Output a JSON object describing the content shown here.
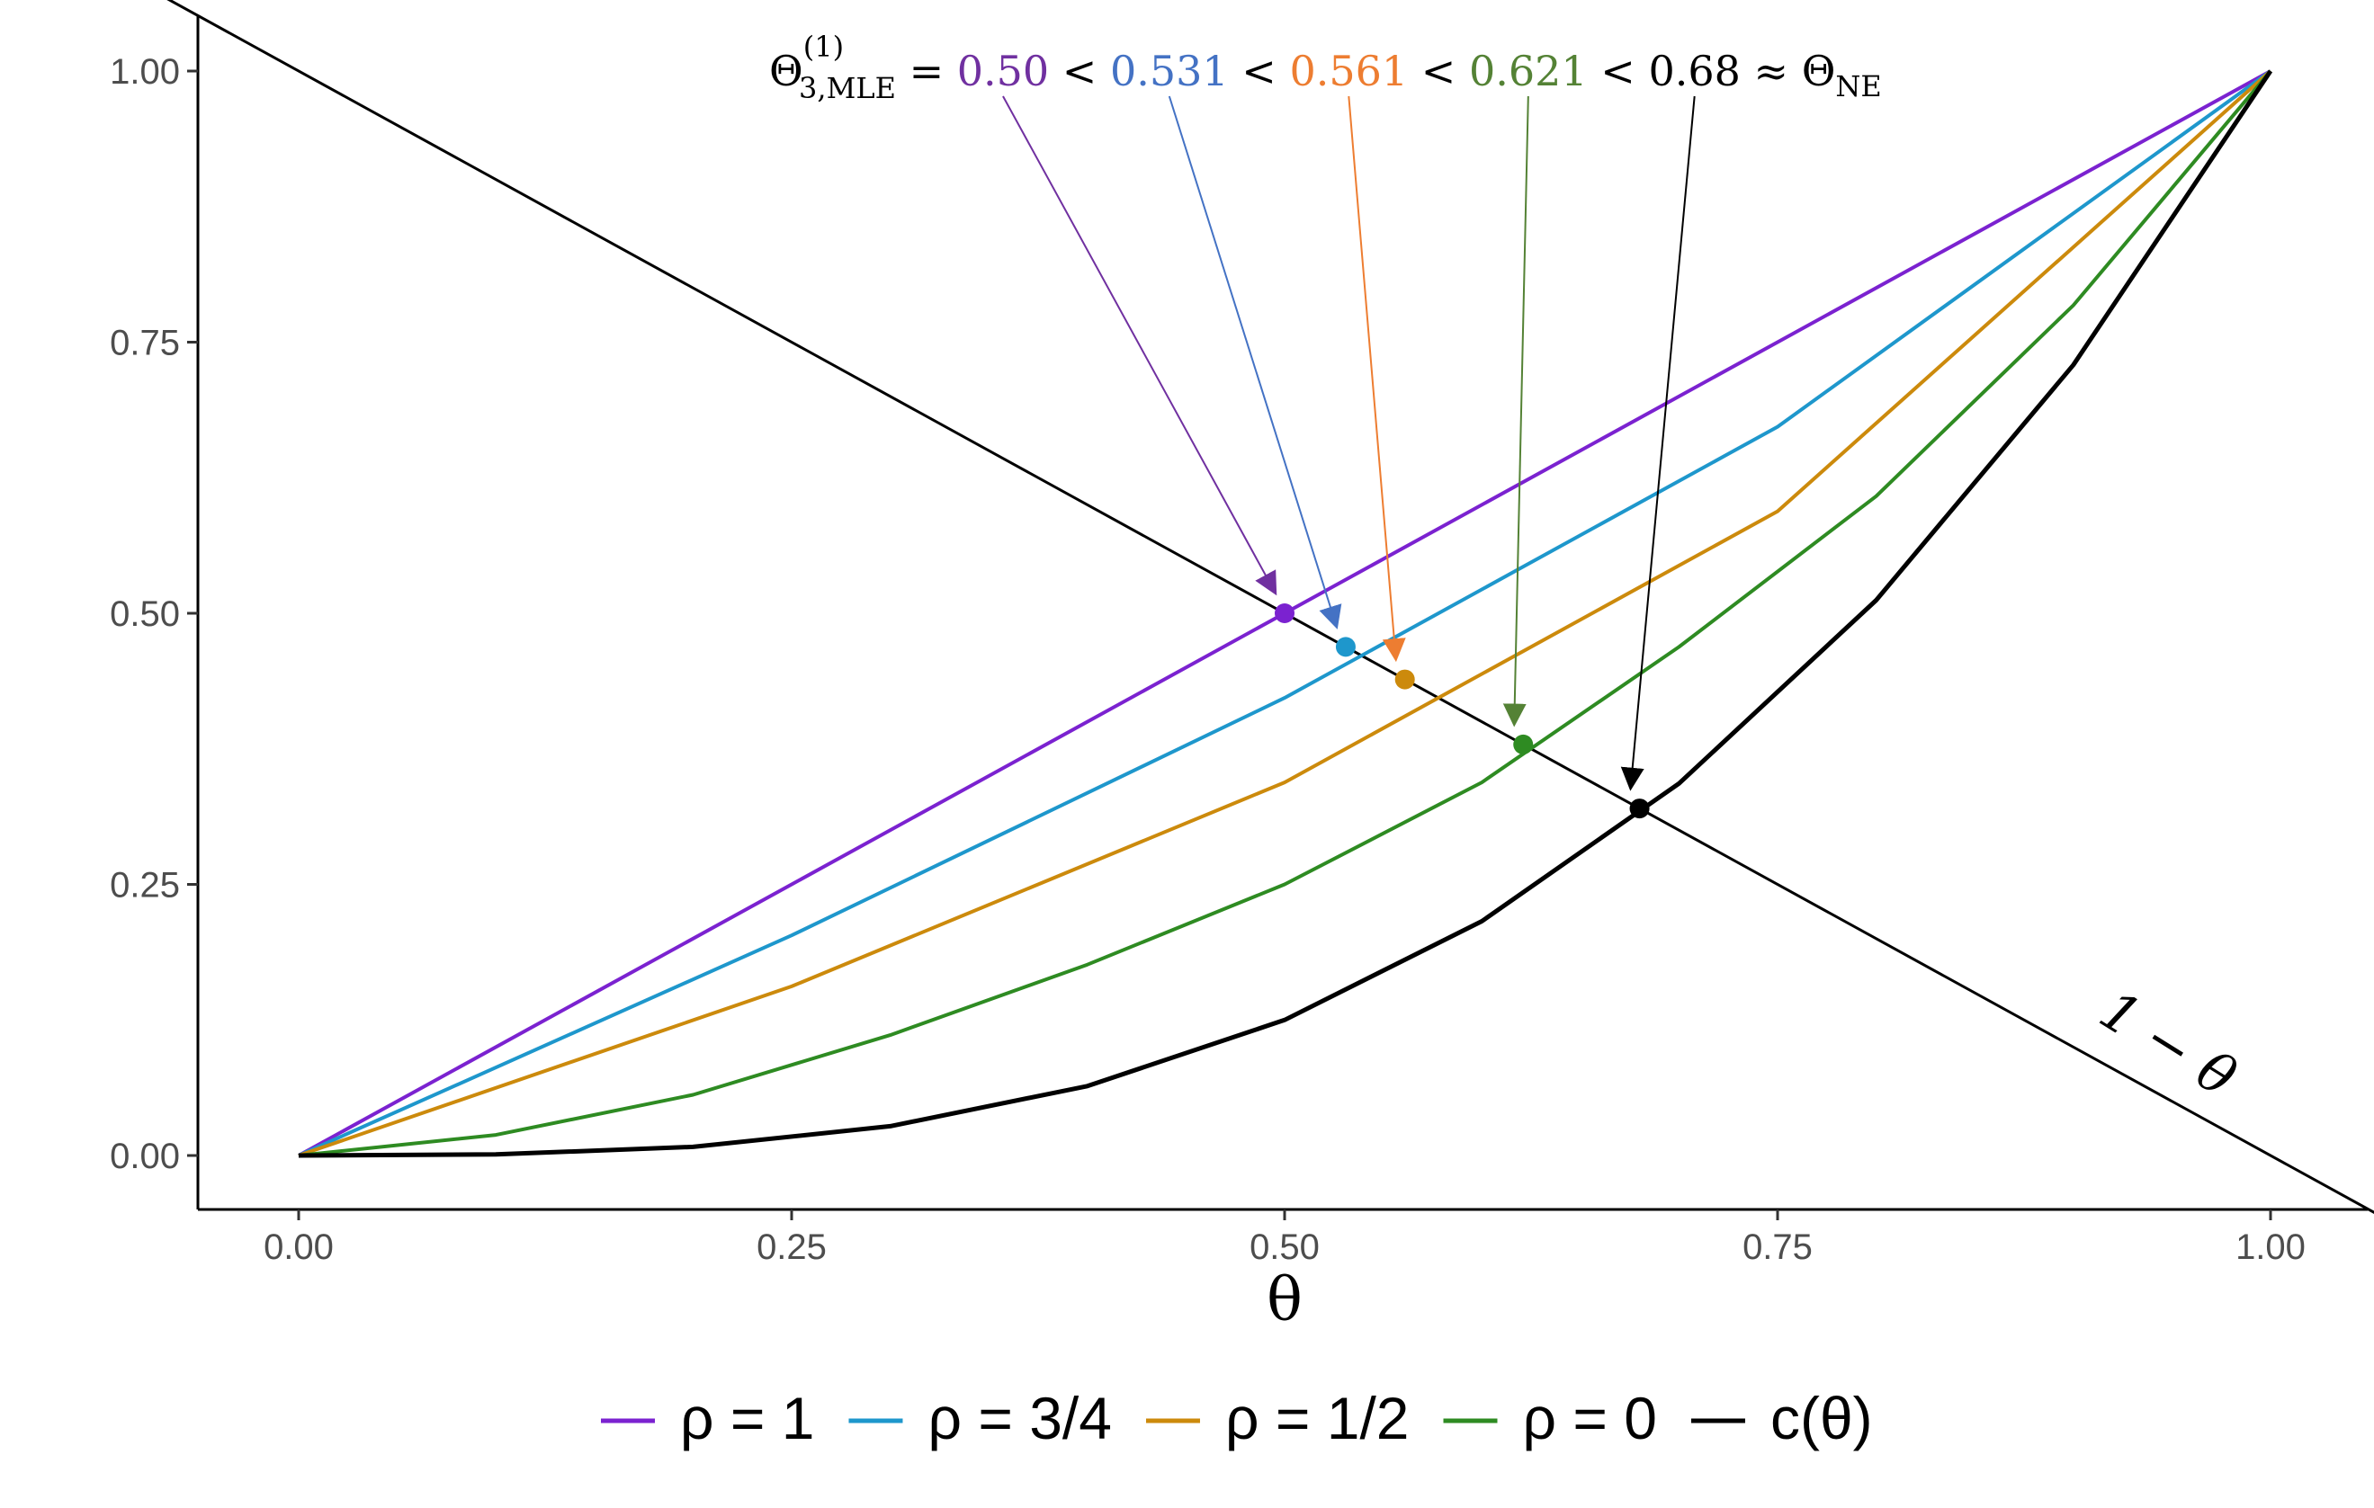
{
  "chart_data": {
    "type": "line",
    "xlabel": "θ",
    "ylabel": "",
    "xlim": [
      -0.1,
      1.1
    ],
    "ylim": [
      -0.05,
      1.05
    ],
    "x_ticks": [
      "0.00",
      "0.25",
      "0.50",
      "0.75",
      "1.00"
    ],
    "y_ticks": [
      "0.00",
      "0.25",
      "0.50",
      "0.75",
      "1.00"
    ],
    "x_tick_values": [
      0,
      0.25,
      0.5,
      0.75,
      1
    ],
    "y_tick_values": [
      0,
      0.25,
      0.5,
      0.75,
      1
    ],
    "grid": false,
    "legend_position": "bottom",
    "reference_line": {
      "label": "1 − θ",
      "x": [
        -0.1,
        1.1
      ],
      "y": [
        1.1,
        -0.1
      ]
    },
    "series": [
      {
        "name": "ρ = 1",
        "color": "#7B22D0",
        "x": [
          0,
          0.25,
          0.5,
          0.75,
          1
        ],
        "y": [
          0,
          0.25,
          0.5,
          0.75,
          1
        ]
      },
      {
        "name": "ρ = 3/4",
        "color": "#1E97CC",
        "x": [
          0,
          0.25,
          0.5,
          0.75,
          1
        ],
        "y": [
          0,
          0.203,
          0.422,
          0.672,
          1
        ]
      },
      {
        "name": "ρ = 1/2",
        "color": "#CC8A0C",
        "x": [
          0,
          0.25,
          0.5,
          0.75,
          1
        ],
        "y": [
          0,
          0.156,
          0.344,
          0.594,
          1
        ]
      },
      {
        "name": "ρ = 0",
        "color": "#2E8B22",
        "x": [
          0,
          0.1,
          0.2,
          0.3,
          0.4,
          0.5,
          0.6,
          0.7,
          0.8,
          0.9,
          1
        ],
        "y": [
          0,
          0.019,
          0.056,
          0.111,
          0.176,
          0.25,
          0.344,
          0.469,
          0.608,
          0.784,
          1
        ]
      },
      {
        "name": "c(θ)",
        "color": "#000000",
        "x": [
          0,
          0.1,
          0.2,
          0.3,
          0.4,
          0.5,
          0.6,
          0.7,
          0.8,
          0.9,
          1
        ],
        "y": [
          0,
          0.001,
          0.008,
          0.027,
          0.064,
          0.125,
          0.216,
          0.343,
          0.512,
          0.729,
          1
        ]
      }
    ],
    "points": [
      {
        "x": 0.5,
        "y": 0.5,
        "color": "#7B22D0",
        "label": "0.50",
        "label_color": "#7030A0"
      },
      {
        "x": 0.531,
        "y": 0.469,
        "color": "#1E97CC",
        "label": "0.531",
        "label_color": "#4472C4"
      },
      {
        "x": 0.561,
        "y": 0.439,
        "color": "#CC8A0C",
        "label": "0.561",
        "label_color": "#ED7D31"
      },
      {
        "x": 0.621,
        "y": 0.379,
        "color": "#2E8B22",
        "label": "0.621",
        "label_color": "#548235"
      },
      {
        "x": 0.68,
        "y": 0.32,
        "color": "#000000",
        "label": "0.68",
        "label_color": "#000000"
      }
    ],
    "annotation": {
      "lhs_base": "Θ",
      "lhs_sup": "(1)",
      "lhs_sub": "3,MLE",
      "equals": "=",
      "less_than": "<",
      "approx": "≈",
      "rhs_base": "Θ",
      "rhs_sub": "NE"
    }
  }
}
